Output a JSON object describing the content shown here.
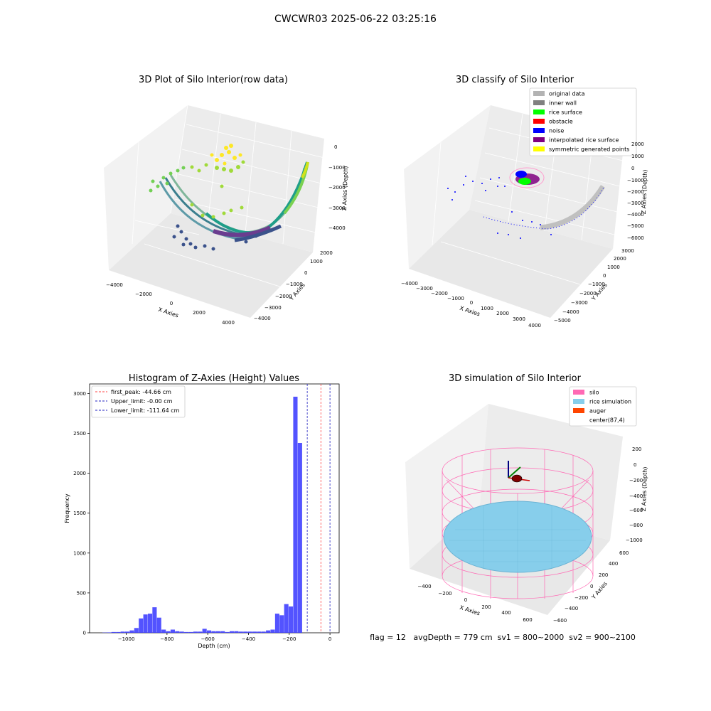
{
  "suptitle": "CWCWR03 2025-06-22 03:25:16",
  "colors": {
    "pane": "#f2f2f2",
    "pane_dark": "#e6e6e6",
    "grid": "#ffffff",
    "hist": "#4040ff",
    "peak": "#ff4040",
    "limit": "#2020c0",
    "silo": "#ff69b4",
    "rice": "#87ceeb",
    "auger": "#ff4500"
  },
  "chart_data": [
    {
      "type": "scatter3d",
      "title": "3D Plot of Silo Interior(row data)",
      "xlabel": "X Axies",
      "ylabel": "Y Axies",
      "zlabel": "Z Axies (Depth)",
      "xticks": [
        "−4000",
        "−2000",
        "0",
        "2000",
        "4000"
      ],
      "yticks": [
        "−4000",
        "−3000",
        "−2000",
        "−1000",
        "0",
        "1000",
        "2000"
      ],
      "zticks": [
        "0",
        "−1000",
        "−2000",
        "−3000",
        "−4000"
      ],
      "colormap": "viridis"
    },
    {
      "type": "scatter3d",
      "title": "3D classify of Silo Interior",
      "xlabel": "X Axies",
      "ylabel": "Y Axies",
      "zlabel": "Z Axies (Depth)",
      "xticks": [
        "−4000",
        "−3000",
        "−2000",
        "−1000",
        "0",
        "1000",
        "2000",
        "3000",
        "4000"
      ],
      "yticks": [
        "−5000",
        "−4000",
        "−3000",
        "−2000",
        "−1000",
        "0",
        "1000",
        "2000",
        "3000"
      ],
      "zticks": [
        "1000",
        "0",
        "−1000",
        "−2000",
        "−3000",
        "−4000",
        "−5000",
        "−6000"
      ],
      "ztick_top": "2000",
      "legend": [
        {
          "label": "original data",
          "color": "#b3b3b3"
        },
        {
          "label": "inner wall",
          "color": "#808080"
        },
        {
          "label": "rice surface",
          "color": "#00ff00"
        },
        {
          "label": "obstacle",
          "color": "#ff0000"
        },
        {
          "label": "noise",
          "color": "#0000ff"
        },
        {
          "label": "interpolated rice surface",
          "color": "#800080"
        },
        {
          "label": "symmetric generated points",
          "color": "#ffff00"
        }
      ],
      "legend_position": "upper-right"
    },
    {
      "type": "histogram",
      "title": "Histogram of Z-Axies (Height) Values",
      "xlabel": "Depth (cm)",
      "ylabel": "Frequency",
      "xlim": [
        -1180,
        45
      ],
      "ylim": [
        0,
        3120
      ],
      "xticks": [
        -1000,
        -800,
        -600,
        -400,
        -200,
        0
      ],
      "xtick_labels": [
        "−1000",
        "−800",
        "−600",
        "−400",
        "−200",
        "0"
      ],
      "yticks": [
        0,
        500,
        1000,
        1500,
        2000,
        2500,
        3000
      ],
      "ytick_labels": [
        "0",
        "500",
        "1000",
        "1500",
        "2000",
        "2500",
        "3000"
      ],
      "bin_width": 22.3,
      "bin_start": -1117,
      "counts": [
        3,
        5,
        10,
        10,
        15,
        15,
        30,
        60,
        180,
        230,
        240,
        320,
        190,
        40,
        20,
        40,
        20,
        15,
        10,
        10,
        15,
        15,
        50,
        30,
        20,
        20,
        20,
        10,
        20,
        20,
        15,
        15,
        15,
        15,
        15,
        15,
        30,
        40,
        240,
        220,
        360,
        330,
        2960,
        2380
      ],
      "vlines": [
        {
          "label": "first_peak: -44.66 cm",
          "x": -44.66,
          "color_key": "peak"
        },
        {
          "label": "Upper_limit: -0.00 cm",
          "x": 0.0,
          "color_key": "limit"
        },
        {
          "label": "Lower_limit: -111.64 cm",
          "x": -111.64,
          "color_key": "limit"
        }
      ],
      "legend_position": "upper-left"
    },
    {
      "type": "surface3d",
      "title": "3D simulation of Silo Interior",
      "xlabel": "X Axies",
      "ylabel": "Y Axies",
      "zlabel": "Z Axies (Depth)",
      "xticks": [
        "−400",
        "−200",
        "0",
        "200",
        "400",
        "600"
      ],
      "yticks": [
        "−600",
        "−400",
        "−200",
        "0",
        "200",
        "400",
        "600"
      ],
      "zticks": [
        "200",
        "0",
        "−200",
        "−400",
        "−600",
        "−800",
        "−1000"
      ],
      "legend": [
        {
          "label": "silo",
          "color": "#ff69b4"
        },
        {
          "label": "rice simulation",
          "color": "#87ceeb"
        },
        {
          "label": "auger",
          "color": "#ff4500"
        },
        {
          "label": "center(87,4)",
          "color": ""
        }
      ],
      "legend_position": "upper-right"
    }
  ],
  "footer_text": "flag = 12   avgDepth = 779 cm  sv1 = 800~2000  sv2 = 900~2100"
}
